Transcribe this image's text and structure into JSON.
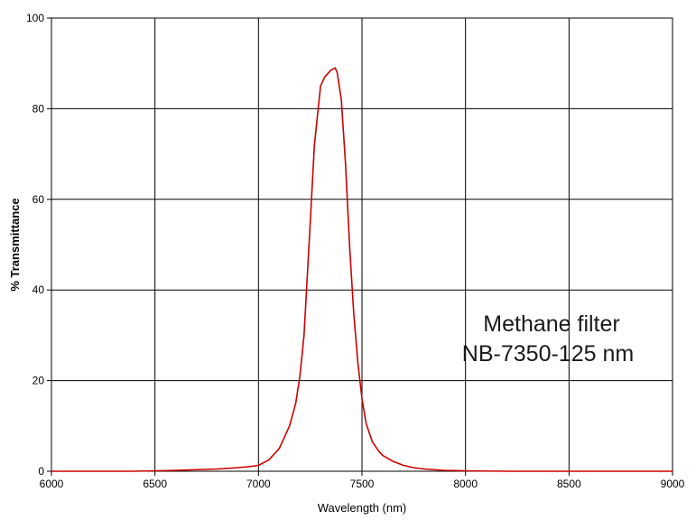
{
  "chart_data": {
    "type": "line",
    "xlabel": "Wavelength (nm)",
    "ylabel": "% Transmittance",
    "xlim": [
      6000,
      9000
    ],
    "ylim": [
      0,
      100
    ],
    "x_ticks": [
      "6000",
      "6500",
      "7000",
      "7500",
      "8000",
      "8500",
      "9000"
    ],
    "y_ticks": [
      "0",
      "20",
      "40",
      "60",
      "80",
      "100"
    ],
    "grid": true,
    "annotation": {
      "line1": "Methane filter",
      "line2": "NB-7350-125 nm"
    },
    "series": [
      {
        "color": "#cc0000",
        "x": [
          6000,
          6200,
          6400,
          6600,
          6800,
          6900,
          6950,
          7000,
          7050,
          7100,
          7150,
          7180,
          7200,
          7220,
          7250,
          7270,
          7300,
          7320,
          7350,
          7370,
          7380,
          7400,
          7420,
          7440,
          7460,
          7480,
          7500,
          7520,
          7550,
          7580,
          7600,
          7650,
          7700,
          7750,
          7800,
          7900,
          8000,
          8200,
          8500,
          8800,
          9000
        ],
        "y": [
          0,
          0,
          0,
          0.2,
          0.5,
          0.8,
          1,
          1.3,
          2.5,
          5,
          10,
          15,
          21,
          30,
          55,
          72,
          85,
          87,
          88.5,
          89,
          88,
          82,
          68,
          50,
          35,
          24,
          16,
          10.5,
          6.5,
          4.5,
          3.5,
          2.2,
          1.3,
          0.8,
          0.5,
          0.2,
          0.1,
          0,
          0,
          0,
          0
        ]
      }
    ]
  }
}
